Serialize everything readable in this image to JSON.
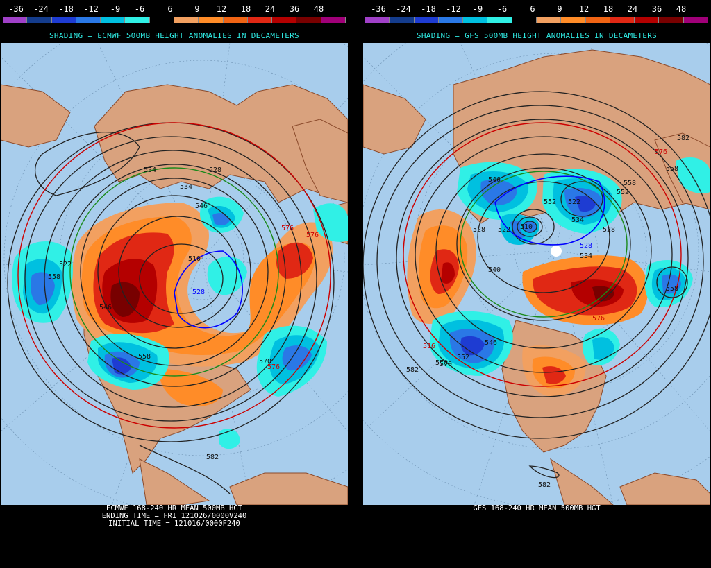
{
  "color_scale": {
    "labels": [
      "-36",
      "-24",
      "-18",
      "-12",
      "-9",
      "-6",
      "6",
      "9",
      "12",
      "18",
      "24",
      "36",
      "48"
    ],
    "colors": [
      "#a040c8",
      "#143c8c",
      "#1e3cd2",
      "#2a78e6",
      "#00c0e0",
      "#30f0e6",
      "#000000",
      "#f2a060",
      "#ff8c28",
      "#f06414",
      "#e02814",
      "#b40000",
      "#780000",
      "#a00078"
    ]
  },
  "left_panel": {
    "shading_title": "SHADING = ECMWF 500MB HEIGHT ANOMALIES IN DECAMETERS",
    "bottom_lines": [
      "ECMWF 168-240 HR MEAN 500MB HGT",
      "ENDING TIME = FRI 121026/0000V240",
      "INITIAL TIME = 121016/0000F240"
    ],
    "contour_labels": [
      "534",
      "528",
      "510",
      "522",
      "546",
      "558",
      "570",
      "576",
      "582",
      "576",
      "558",
      "534",
      "546",
      "528",
      "576"
    ]
  },
  "right_panel": {
    "shading_title": "SHADING = GFS 500MB HEIGHT ANOMALIES IN DECAMETERS",
    "bottom_lines": [
      "GFS 168-240 HR MEAN 500MB HGT"
    ],
    "contour_labels": [
      "582",
      "570",
      "558",
      "552",
      "546",
      "522",
      "528",
      "510",
      "516",
      "540",
      "528",
      "534",
      "558",
      "552",
      "546",
      "534",
      "522",
      "528",
      "552",
      "558",
      "576",
      "582",
      "582",
      "570",
      "576"
    ]
  },
  "colors": {
    "ocean": "#a8cdec",
    "land": "#d9a27e",
    "border": "#8b4a2b"
  }
}
